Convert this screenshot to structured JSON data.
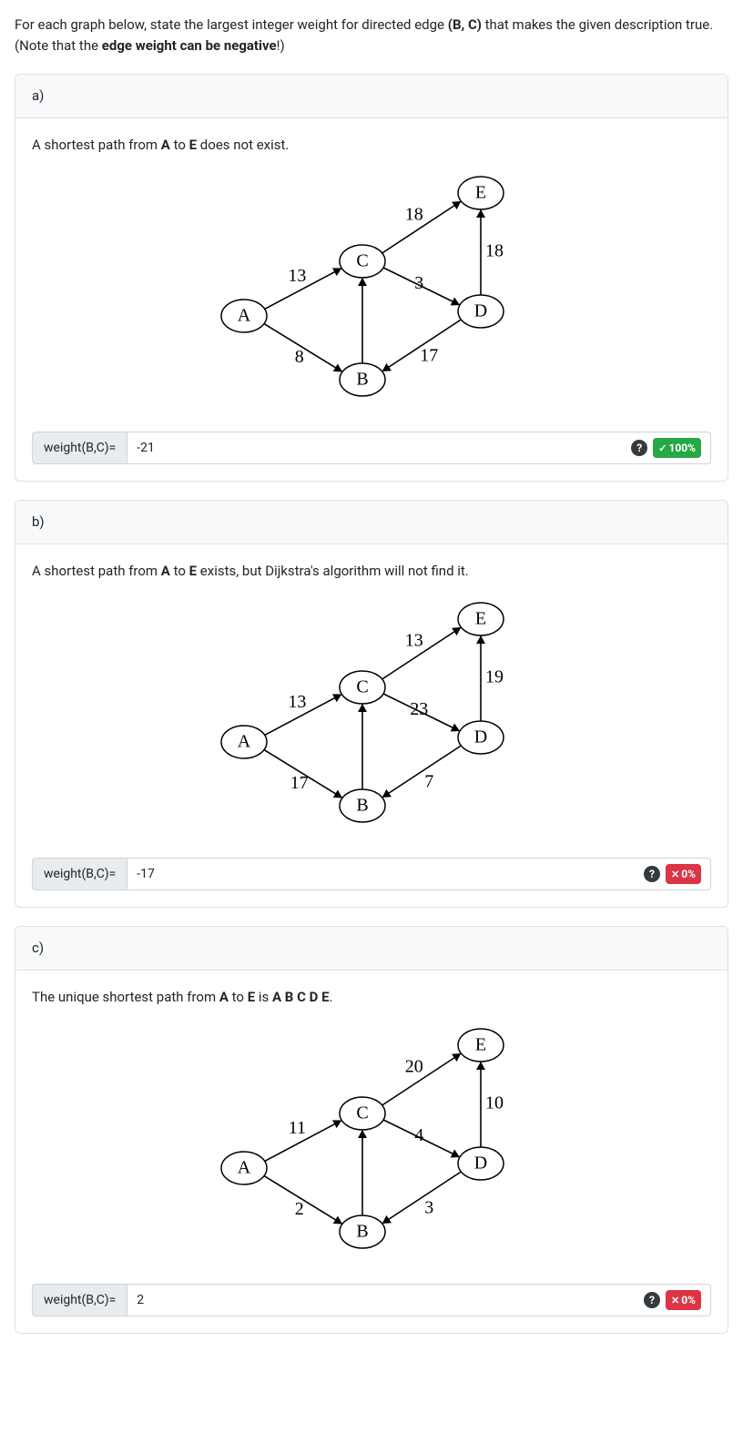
{
  "intro": {
    "pre": "For each graph below, state the largest integer weight for directed edge ",
    "edge": "(B, C)",
    "mid": " that makes the given description true. (Note that the ",
    "bold": "edge weight can be negative",
    "post": "!)"
  },
  "parts": {
    "a": {
      "label": "a)",
      "desc_pre": "A shortest path from ",
      "a": "A",
      "desc_mid": " to ",
      "e": "E",
      "desc_post": " does not exist.",
      "answer_label": "weight(B,C)=",
      "answer_value": "-21",
      "badge_type": "success",
      "badge_mark": "✓",
      "badge_text": "100%",
      "weights": {
        "AC": "13",
        "AB": "8",
        "CE": "18",
        "CD": "3",
        "DB": "17",
        "DE": "18"
      },
      "AB_label_pos": "below"
    },
    "b": {
      "label": "b)",
      "desc_pre": "A shortest path from ",
      "a": "A",
      "desc_mid1": " to ",
      "e": "E",
      "desc_post": " exists, but Dijkstra's algorithm will not find it.",
      "answer_label": "weight(B,C)=",
      "answer_value": "-17",
      "badge_type": "danger",
      "badge_mark": "✕",
      "badge_text": "0%",
      "weights": {
        "AC": "13",
        "AB": "17",
        "CE": "13",
        "CD": "23",
        "DB": "7",
        "DE": "19"
      },
      "AB_label_pos": "below"
    },
    "c": {
      "label": "c)",
      "desc_pre": "The unique shortest path from ",
      "a": "A",
      "desc_mid1": " to ",
      "e": "E",
      "desc_mid2": " is  ",
      "path": "A B C D E",
      "desc_post": ".",
      "answer_label": "weight(B,C)=",
      "answer_value": "2",
      "badge_type": "danger",
      "badge_mark": "✕",
      "badge_text": "0%",
      "weights": {
        "AC": "11",
        "AB": "2",
        "CE": "20",
        "CD": "4",
        "DB": "3",
        "DE": "10"
      },
      "AB_label_pos": "below"
    }
  },
  "nodes": [
    "A",
    "B",
    "C",
    "D",
    "E"
  ],
  "colors": {
    "card_border": "#dee2e6",
    "header_bg": "#f8f9fa",
    "label_bg": "#e9ecef"
  }
}
